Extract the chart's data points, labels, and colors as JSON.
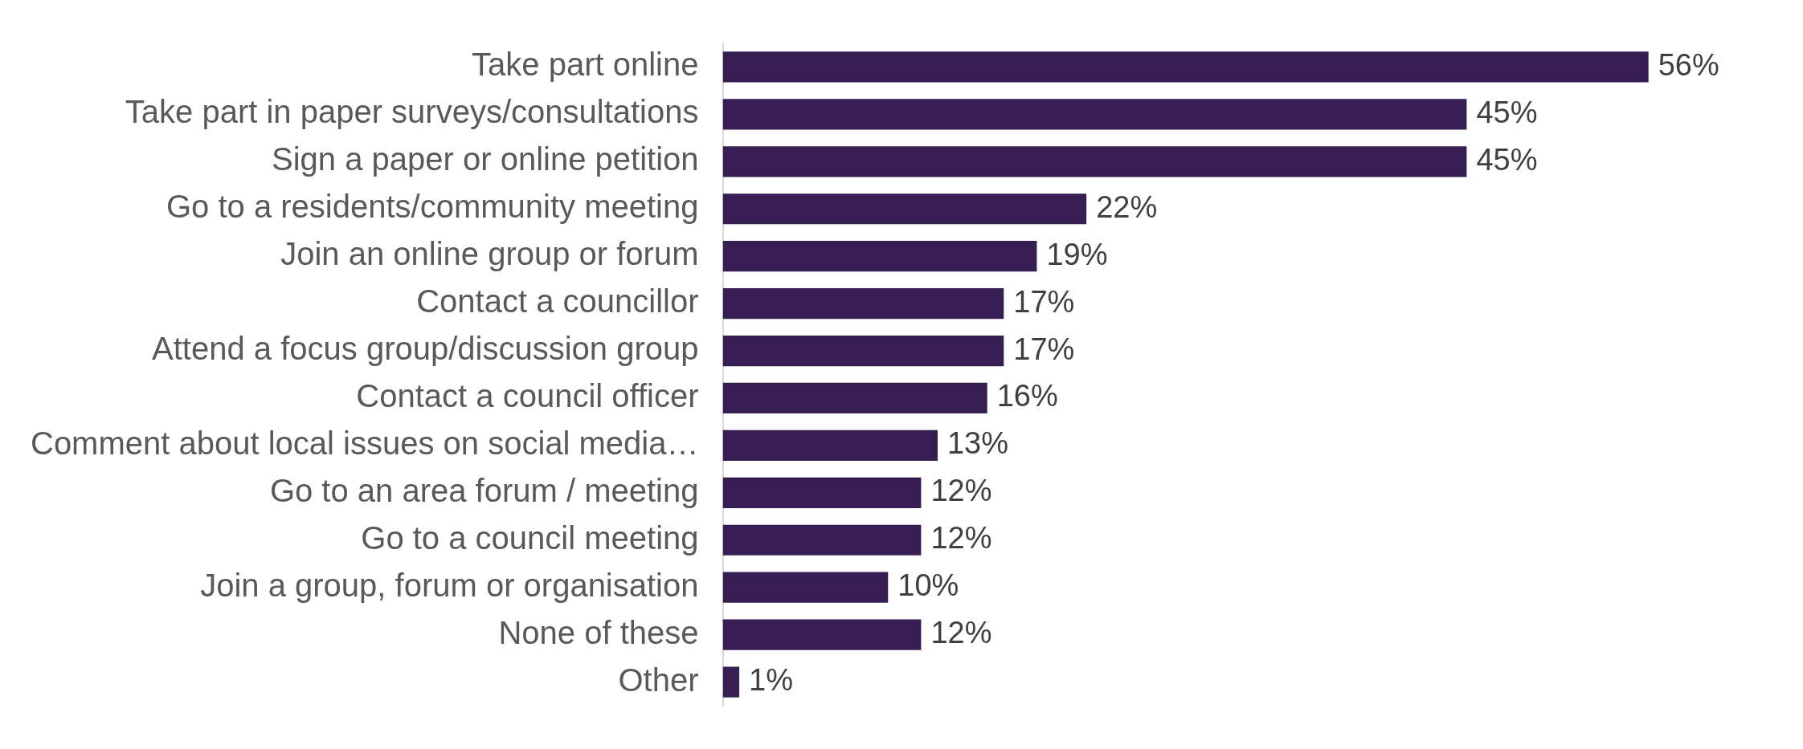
{
  "chart_data": {
    "type": "bar",
    "orientation": "horizontal",
    "categories": [
      "Take part online",
      "Take part in paper surveys/consultations",
      "Sign a paper or online petition",
      "Go to a residents/community meeting",
      "Join an online group or forum",
      "Contact a councillor",
      "Attend a focus group/discussion group",
      "Contact a council officer",
      "Comment about local issues on social media…",
      "Go to an area forum / meeting",
      "Go to a council meeting",
      "Join a group, forum or organisation",
      "None of these",
      "Other"
    ],
    "values": [
      56,
      45,
      45,
      22,
      19,
      17,
      17,
      16,
      13,
      12,
      12,
      10,
      12,
      1
    ],
    "value_labels": [
      "56%",
      "45%",
      "45%",
      "22%",
      "19%",
      "17%",
      "17%",
      "16%",
      "13%",
      "12%",
      "12%",
      "10%",
      "12%",
      "1%"
    ],
    "color": "#361d52",
    "tick_labels": "y"
  }
}
